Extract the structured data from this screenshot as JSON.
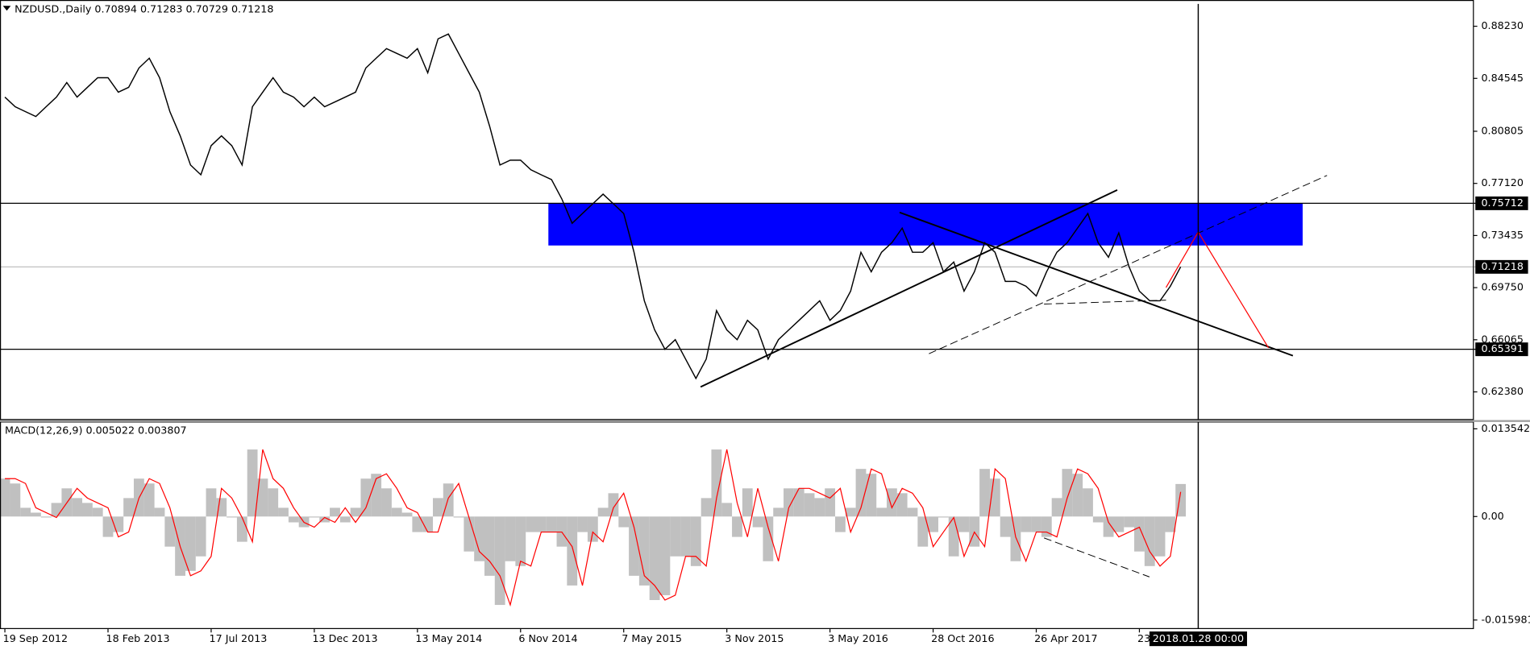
{
  "chart_data": [
    {
      "type": "line",
      "title": "NZDUSD.,Daily  0.70894 0.71283 0.70729 0.71218",
      "categories": [
        "19 Sep 2012",
        null,
        null,
        null,
        null,
        null,
        null,
        null,
        null,
        null,
        "18 Feb 2013",
        null,
        null,
        null,
        null,
        null,
        null,
        null,
        null,
        null,
        "17 Jul 2013",
        null,
        null,
        null,
        null,
        null,
        null,
        null,
        null,
        null,
        "13 Dec 2013",
        null,
        null,
        null,
        null,
        null,
        null,
        null,
        null,
        null,
        "13 May 2014",
        null,
        null,
        null,
        null,
        null,
        null,
        null,
        null,
        null,
        "6 Nov 2014",
        null,
        null,
        null,
        null,
        null,
        null,
        null,
        null,
        null,
        "7 May 2015",
        null,
        null,
        null,
        null,
        null,
        null,
        null,
        null,
        null,
        "3 Nov 2015",
        null,
        null,
        null,
        null,
        null,
        null,
        null,
        null,
        null,
        "3 May 2016",
        null,
        null,
        null,
        null,
        null,
        null,
        null,
        null,
        null,
        "28 Oct 2016",
        null,
        null,
        null,
        null,
        null,
        null,
        null,
        null,
        null,
        "26 Apr 2017",
        null,
        null,
        null,
        null,
        null,
        null,
        null,
        null,
        null,
        "23",
        null,
        null,
        null,
        null
      ],
      "values": [
        0.8322,
        0.8254,
        0.8219,
        0.8185,
        0.8254,
        0.8322,
        0.8425,
        0.8322,
        0.8391,
        0.8459,
        0.8459,
        0.8357,
        0.8391,
        0.8528,
        0.8597,
        0.8459,
        0.8219,
        0.8048,
        0.7842,
        0.7773,
        0.7979,
        0.8048,
        0.7979,
        0.7842,
        0.8254,
        0.8357,
        0.8459,
        0.8357,
        0.8322,
        0.8254,
        0.8322,
        0.8254,
        0.8288,
        0.8322,
        0.8357,
        0.8528,
        0.8597,
        0.8665,
        0.8631,
        0.8597,
        0.8665,
        0.8494,
        0.8734,
        0.8768,
        0.8631,
        0.8494,
        0.8357,
        0.8116,
        0.7842,
        0.7876,
        0.7876,
        0.7808,
        0.7773,
        0.7739,
        0.7602,
        0.743,
        0.7499,
        0.7568,
        0.7636,
        0.7568,
        0.7499,
        0.7225,
        0.6882,
        0.6676,
        0.6539,
        0.6607,
        0.647,
        0.6333,
        0.647,
        0.6813,
        0.6676,
        0.6607,
        0.6744,
        0.6676,
        0.647,
        0.6607,
        0.6676,
        0.6744,
        0.6813,
        0.6882,
        0.6744,
        0.6813,
        0.695,
        0.7225,
        0.7087,
        0.7225,
        0.7293,
        0.7396,
        0.7225,
        0.7225,
        0.7293,
        0.7087,
        0.7156,
        0.695,
        0.7087,
        0.7293,
        0.7225,
        0.7019,
        0.7019,
        0.6985,
        0.6916,
        0.7087,
        0.7225,
        0.7293,
        0.7396,
        0.7499,
        0.7293,
        0.719,
        0.7362,
        0.7122,
        0.695,
        0.6882,
        0.6882,
        0.6985,
        0.71218
      ],
      "color": "#000000",
      "ylim": [
        0.6046,
        0.8981
      ],
      "yticks": [
        {
          "value": 0.8823,
          "label": "0.88230"
        },
        0.84545,
        0.80805,
        {
          "value": 0.7712,
          "label": "0.77120"
        },
        0.73435,
        {
          "value": 0.6975,
          "label": "0.69750"
        },
        0.66065,
        {
          "value": 0.6238,
          "label": "0.62380"
        }
      ],
      "levels": [
        {
          "value": 0.75712,
          "color": "#000000"
        },
        {
          "value": 0.71218,
          "color": "#c0c0c0"
        },
        {
          "value": 0.65391,
          "color": "#000000"
        }
      ],
      "zone": {
        "from": 0.7273,
        "to": 0.75712,
        "color": "#0000ff"
      },
      "crosshair_label": "2018.01.28 00:00"
    },
    {
      "type": "macd",
      "title": "MACD(12,26,9) 0.005022 0.003807",
      "series": [
        {
          "style": "histogram",
          "color": "#c0c0c0",
          "values": [
            0.00585,
            0.0051,
            0.00135,
            0.0006,
            -0.00015,
            0.0021,
            0.00435,
            0.00285,
            0.0021,
            0.00135,
            -0.00315,
            -0.0024,
            0.00285,
            0.00585,
            0.0051,
            0.00135,
            -0.00465,
            -0.00915,
            -0.0084,
            -0.00615,
            0.00435,
            0.00285,
            -0.00015,
            -0.0039,
            0.01035,
            0.00585,
            0.00435,
            0.00135,
            -0.0009,
            -0.00165,
            -0.00015,
            -0.0009,
            0.00135,
            -0.0009,
            0.00135,
            0.00585,
            0.0066,
            0.00435,
            0.00135,
            0.0006,
            -0.0024,
            -0.0024,
            0.00285,
            0.0051,
            -0.00015,
            -0.0054,
            -0.0069,
            -0.00915,
            -0.01365,
            -0.0069,
            -0.00765,
            -0.0024,
            -0.0024,
            -0.0024,
            -0.00465,
            -0.01065,
            -0.0024,
            -0.0039,
            0.00135,
            0.0036,
            -0.00165,
            -0.00915,
            -0.01065,
            -0.0129,
            -0.01215,
            -0.00615,
            -0.00615,
            -0.00765,
            0.00285,
            0.01035,
            0.0021,
            -0.00315,
            0.00435,
            -0.00165,
            -0.0069,
            0.00135,
            0.00435,
            0.00435,
            0.0036,
            0.00285,
            0.00435,
            -0.0024,
            0.00135,
            0.00735,
            0.0066,
            0.00135,
            0.00435,
            0.0036,
            0.00135,
            -0.00465,
            -0.0024,
            -0.00015,
            -0.00615,
            -0.0024,
            -0.00465,
            0.00735,
            0.00585,
            -0.00315,
            -0.0069,
            -0.0024,
            -0.0024,
            -0.00315,
            0.00285,
            0.00735,
            0.0066,
            0.00435,
            -0.0009,
            -0.00315,
            -0.0024,
            -0.00165,
            -0.0054,
            -0.00765,
            -0.00615,
            -0.0024,
            0.005022
          ]
        },
        {
          "style": "line",
          "color": "#ff0000",
          "values": [
            0.00585,
            0.00585,
            0.0051,
            0.00135,
            0.0006,
            -0.00015,
            0.0021,
            0.00435,
            0.00285,
            0.0021,
            0.00135,
            -0.00315,
            -0.0024,
            0.00285,
            0.00585,
            0.0051,
            0.00135,
            -0.00465,
            -0.00915,
            -0.0084,
            -0.00615,
            0.00435,
            0.00285,
            -0.00015,
            -0.0039,
            0.01035,
            0.00585,
            0.00435,
            0.00135,
            -0.0009,
            -0.00165,
            -0.00015,
            -0.0009,
            0.00135,
            -0.0009,
            0.00135,
            0.00585,
            0.0066,
            0.00435,
            0.00135,
            0.0006,
            -0.0024,
            -0.0024,
            0.00285,
            0.0051,
            -0.00015,
            -0.0054,
            -0.0069,
            -0.00915,
            -0.01365,
            -0.0069,
            -0.00765,
            -0.0024,
            -0.0024,
            -0.0024,
            -0.00465,
            -0.01065,
            -0.0024,
            -0.0039,
            0.00135,
            0.0036,
            -0.00165,
            -0.00915,
            -0.01065,
            -0.0129,
            -0.01215,
            -0.00615,
            -0.00615,
            -0.00765,
            0.00285,
            0.01035,
            0.0021,
            -0.00315,
            0.00435,
            -0.00165,
            -0.0069,
            0.00135,
            0.00435,
            0.00435,
            0.0036,
            0.00285,
            0.00435,
            -0.0024,
            0.00135,
            0.00735,
            0.0066,
            0.00135,
            0.00435,
            0.0036,
            0.00135,
            -0.00465,
            -0.0024,
            -0.00015,
            -0.00615,
            -0.0024,
            -0.00465,
            0.00735,
            0.00585,
            -0.00315,
            -0.0069,
            -0.0024,
            -0.0024,
            -0.00315,
            0.00285,
            0.00735,
            0.0066,
            0.00435,
            -0.0009,
            -0.00315,
            -0.0024,
            -0.00165,
            -0.0054,
            -0.00765,
            -0.00615,
            0.003807
          ]
        }
      ],
      "ylim": [
        -0.0173,
        0.0146
      ],
      "yticks": [
        0.013542,
        {
          "value": 0,
          "label": "0.00"
        },
        -0.015981
      ]
    }
  ]
}
